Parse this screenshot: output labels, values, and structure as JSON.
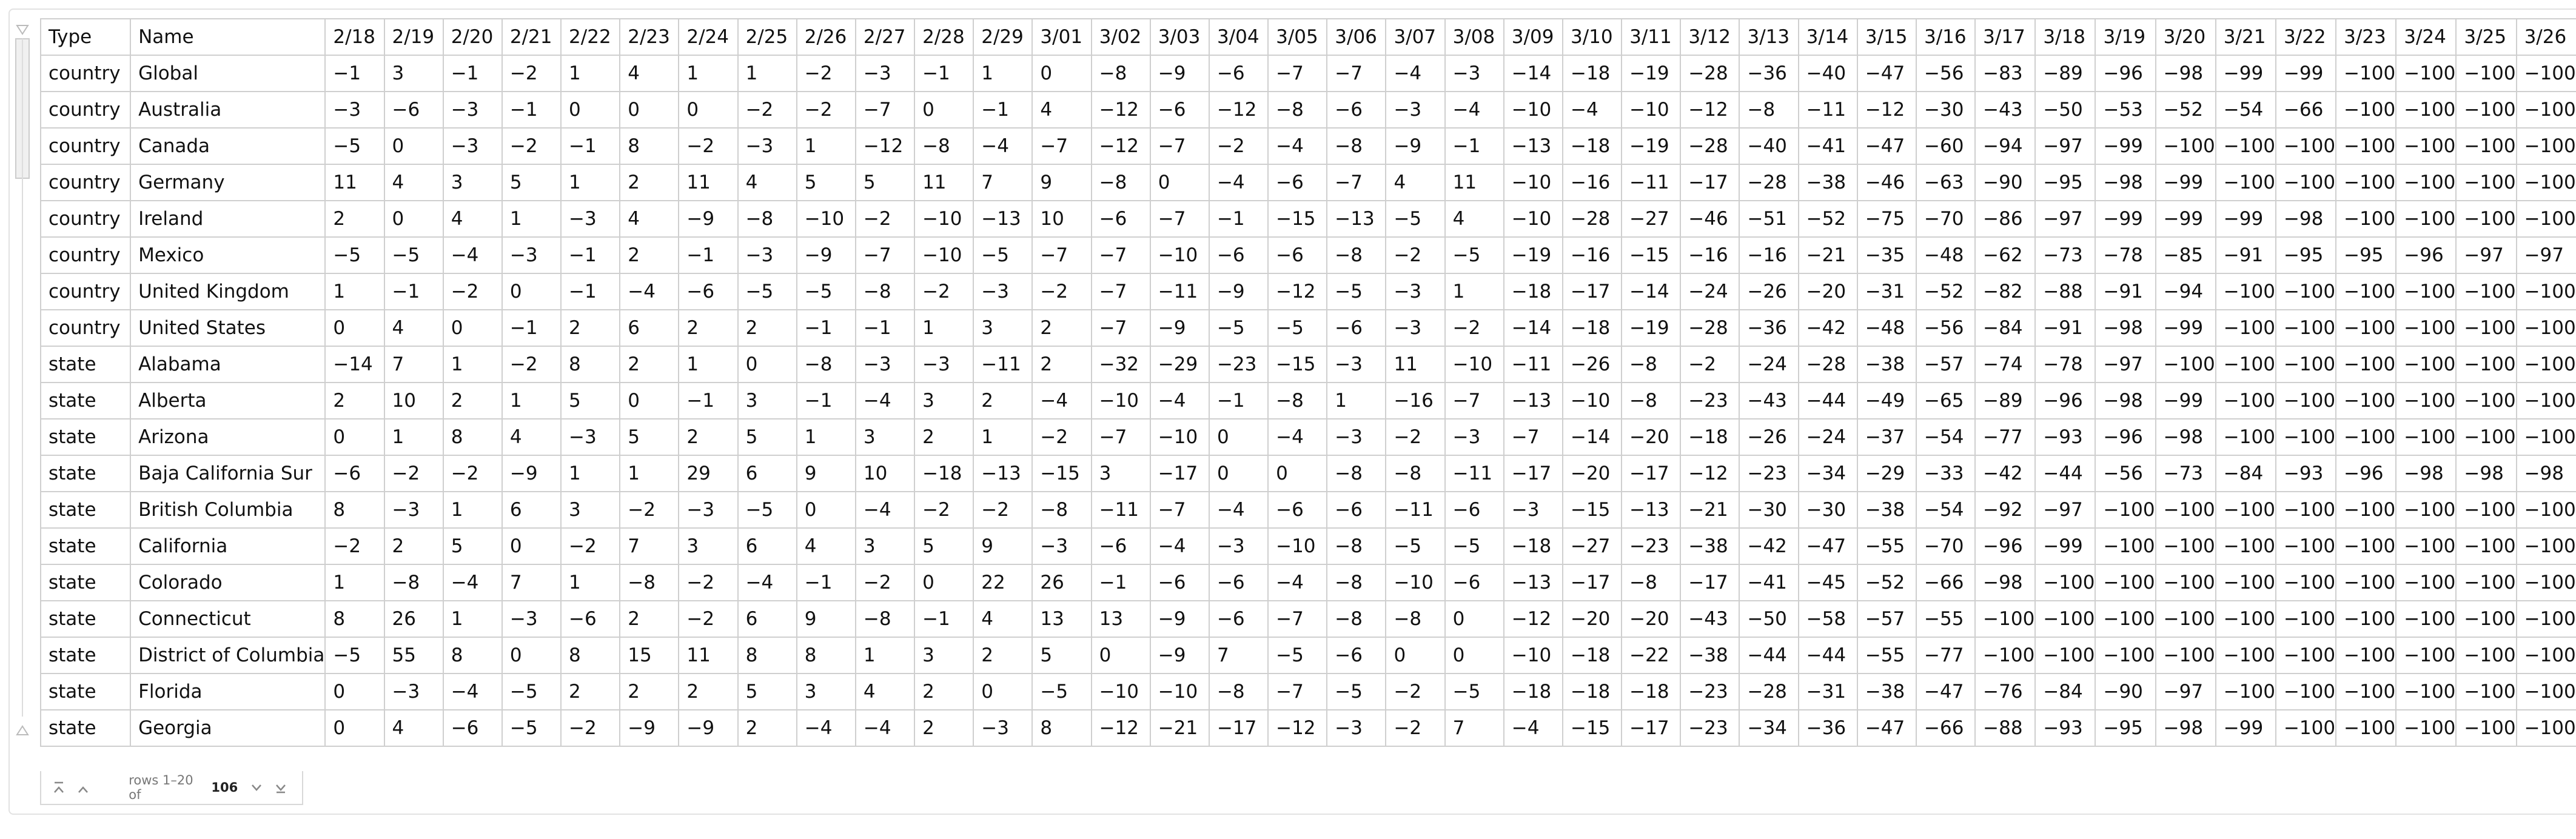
{
  "table": {
    "header": [
      "Type",
      "Name",
      "2/18",
      "2/19",
      "2/20",
      "2/21",
      "2/22",
      "2/23",
      "2/24",
      "2/25",
      "2/26",
      "2/27",
      "2/28",
      "2/29",
      "3/01",
      "3/02",
      "3/03",
      "3/04",
      "3/05",
      "3/06",
      "3/07",
      "3/08",
      "3/09",
      "3/10",
      "3/11",
      "3/12",
      "3/13",
      "3/14",
      "3/15",
      "3/16",
      "3/17",
      "3/18",
      "3/19",
      "3/20",
      "3/21",
      "3/22",
      "3/23",
      "3/24",
      "3/25",
      "3/26"
    ],
    "rows": [
      [
        "country",
        "Global",
        "−1",
        "3",
        "−1",
        "−2",
        "1",
        "4",
        "1",
        "1",
        "−2",
        "−3",
        "−1",
        "1",
        "0",
        "−8",
        "−9",
        "−6",
        "−7",
        "−7",
        "−4",
        "−3",
        "−14",
        "−18",
        "−19",
        "−28",
        "−36",
        "−40",
        "−47",
        "−56",
        "−83",
        "−89",
        "−96",
        "−98",
        "−99",
        "−99",
        "−100",
        "−100",
        "−100",
        "−100"
      ],
      [
        "country",
        "Australia",
        "−3",
        "−6",
        "−3",
        "−1",
        "0",
        "0",
        "0",
        "−2",
        "−2",
        "−7",
        "0",
        "−1",
        "4",
        "−12",
        "−6",
        "−12",
        "−8",
        "−6",
        "−3",
        "−4",
        "−10",
        "−4",
        "−10",
        "−12",
        "−8",
        "−11",
        "−12",
        "−30",
        "−43",
        "−50",
        "−53",
        "−52",
        "−54",
        "−66",
        "−100",
        "−100",
        "−100",
        "−100"
      ],
      [
        "country",
        "Canada",
        "−5",
        "0",
        "−3",
        "−2",
        "−1",
        "8",
        "−2",
        "−3",
        "1",
        "−12",
        "−8",
        "−4",
        "−7",
        "−12",
        "−7",
        "−2",
        "−4",
        "−8",
        "−9",
        "−1",
        "−13",
        "−18",
        "−19",
        "−28",
        "−40",
        "−41",
        "−47",
        "−60",
        "−94",
        "−97",
        "−99",
        "−100",
        "−100",
        "−100",
        "−100",
        "−100",
        "−100",
        "−100"
      ],
      [
        "country",
        "Germany",
        "11",
        "4",
        "3",
        "5",
        "1",
        "2",
        "11",
        "4",
        "5",
        "5",
        "11",
        "7",
        "9",
        "−8",
        "0",
        "−4",
        "−6",
        "−7",
        "4",
        "11",
        "−10",
        "−16",
        "−11",
        "−17",
        "−28",
        "−38",
        "−46",
        "−63",
        "−90",
        "−95",
        "−98",
        "−99",
        "−100",
        "−100",
        "−100",
        "−100",
        "−100",
        "−100"
      ],
      [
        "country",
        "Ireland",
        "2",
        "0",
        "4",
        "1",
        "−3",
        "4",
        "−9",
        "−8",
        "−10",
        "−2",
        "−10",
        "−13",
        "10",
        "−6",
        "−7",
        "−1",
        "−15",
        "−13",
        "−5",
        "4",
        "−10",
        "−28",
        "−27",
        "−46",
        "−51",
        "−52",
        "−75",
        "−70",
        "−86",
        "−97",
        "−99",
        "−99",
        "−99",
        "−98",
        "−100",
        "−100",
        "−100",
        "−100"
      ],
      [
        "country",
        "Mexico",
        "−5",
        "−5",
        "−4",
        "−3",
        "−1",
        "2",
        "−1",
        "−3",
        "−9",
        "−7",
        "−10",
        "−5",
        "−7",
        "−7",
        "−10",
        "−6",
        "−6",
        "−8",
        "−2",
        "−5",
        "−19",
        "−16",
        "−15",
        "−16",
        "−16",
        "−21",
        "−35",
        "−48",
        "−62",
        "−73",
        "−78",
        "−85",
        "−91",
        "−95",
        "−95",
        "−96",
        "−97",
        "−97"
      ],
      [
        "country",
        "United Kingdom",
        "1",
        "−1",
        "−2",
        "0",
        "−1",
        "−4",
        "−6",
        "−5",
        "−5",
        "−8",
        "−2",
        "−3",
        "−2",
        "−7",
        "−11",
        "−9",
        "−12",
        "−5",
        "−3",
        "1",
        "−18",
        "−17",
        "−14",
        "−24",
        "−26",
        "−20",
        "−31",
        "−52",
        "−82",
        "−88",
        "−91",
        "−94",
        "−100",
        "−100",
        "−100",
        "−100",
        "−100",
        "−100"
      ],
      [
        "country",
        "United States",
        "0",
        "4",
        "0",
        "−1",
        "2",
        "6",
        "2",
        "2",
        "−1",
        "−1",
        "1",
        "3",
        "2",
        "−7",
        "−9",
        "−5",
        "−5",
        "−6",
        "−3",
        "−2",
        "−14",
        "−18",
        "−19",
        "−28",
        "−36",
        "−42",
        "−48",
        "−56",
        "−84",
        "−91",
        "−98",
        "−99",
        "−100",
        "−100",
        "−100",
        "−100",
        "−100",
        "−100"
      ],
      [
        "state",
        "Alabama",
        "−14",
        "7",
        "1",
        "−2",
        "8",
        "2",
        "1",
        "0",
        "−8",
        "−3",
        "−3",
        "−11",
        "2",
        "−32",
        "−29",
        "−23",
        "−15",
        "−3",
        "11",
        "−10",
        "−11",
        "−26",
        "−8",
        "−2",
        "−24",
        "−28",
        "−38",
        "−57",
        "−74",
        "−78",
        "−97",
        "−100",
        "−100",
        "−100",
        "−100",
        "−100",
        "−100",
        "−100"
      ],
      [
        "state",
        "Alberta",
        "2",
        "10",
        "2",
        "1",
        "5",
        "0",
        "−1",
        "3",
        "−1",
        "−4",
        "3",
        "2",
        "−4",
        "−10",
        "−4",
        "−1",
        "−8",
        "1",
        "−16",
        "−7",
        "−13",
        "−10",
        "−8",
        "−23",
        "−43",
        "−44",
        "−49",
        "−65",
        "−89",
        "−96",
        "−98",
        "−99",
        "−100",
        "−100",
        "−100",
        "−100",
        "−100",
        "−100"
      ],
      [
        "state",
        "Arizona",
        "0",
        "1",
        "8",
        "4",
        "−3",
        "5",
        "2",
        "5",
        "1",
        "3",
        "2",
        "1",
        "−2",
        "−7",
        "−10",
        "0",
        "−4",
        "−3",
        "−2",
        "−3",
        "−7",
        "−14",
        "−20",
        "−18",
        "−26",
        "−24",
        "−37",
        "−54",
        "−77",
        "−93",
        "−96",
        "−98",
        "−100",
        "−100",
        "−100",
        "−100",
        "−100",
        "−100"
      ],
      [
        "state",
        "Baja California Sur",
        "−6",
        "−2",
        "−2",
        "−9",
        "1",
        "1",
        "29",
        "6",
        "9",
        "10",
        "−18",
        "−13",
        "−15",
        "3",
        "−17",
        "0",
        "0",
        "−8",
        "−8",
        "−11",
        "−17",
        "−20",
        "−17",
        "−12",
        "−23",
        "−34",
        "−29",
        "−33",
        "−42",
        "−44",
        "−56",
        "−73",
        "−84",
        "−93",
        "−96",
        "−98",
        "−98",
        "−98"
      ],
      [
        "state",
        "British Columbia",
        "8",
        "−3",
        "1",
        "6",
        "3",
        "−2",
        "−3",
        "−5",
        "0",
        "−4",
        "−2",
        "−2",
        "−8",
        "−11",
        "−7",
        "−4",
        "−6",
        "−6",
        "−11",
        "−6",
        "−3",
        "−15",
        "−13",
        "−21",
        "−30",
        "−30",
        "−38",
        "−54",
        "−92",
        "−97",
        "−100",
        "−100",
        "−100",
        "−100",
        "−100",
        "−100",
        "−100",
        "−100"
      ],
      [
        "state",
        "California",
        "−2",
        "2",
        "5",
        "0",
        "−2",
        "7",
        "3",
        "6",
        "4",
        "3",
        "5",
        "9",
        "−3",
        "−6",
        "−4",
        "−3",
        "−10",
        "−8",
        "−5",
        "−5",
        "−18",
        "−27",
        "−23",
        "−38",
        "−42",
        "−47",
        "−55",
        "−70",
        "−96",
        "−99",
        "−100",
        "−100",
        "−100",
        "−100",
        "−100",
        "−100",
        "−100",
        "−100"
      ],
      [
        "state",
        "Colorado",
        "1",
        "−8",
        "−4",
        "7",
        "1",
        "−8",
        "−2",
        "−4",
        "−1",
        "−2",
        "0",
        "22",
        "26",
        "−1",
        "−6",
        "−6",
        "−4",
        "−8",
        "−10",
        "−6",
        "−13",
        "−17",
        "−8",
        "−17",
        "−41",
        "−45",
        "−52",
        "−66",
        "−98",
        "−100",
        "−100",
        "−100",
        "−100",
        "−100",
        "−100",
        "−100",
        "−100",
        "−100"
      ],
      [
        "state",
        "Connecticut",
        "8",
        "26",
        "1",
        "−3",
        "−6",
        "2",
        "−2",
        "6",
        "9",
        "−8",
        "−1",
        "4",
        "13",
        "13",
        "−9",
        "−6",
        "−7",
        "−8",
        "−8",
        "0",
        "−12",
        "−20",
        "−20",
        "−43",
        "−50",
        "−58",
        "−57",
        "−55",
        "−100",
        "−100",
        "−100",
        "−100",
        "−100",
        "−100",
        "−100",
        "−100",
        "−100",
        "−100"
      ],
      [
        "state",
        "District of Columbia",
        "−5",
        "55",
        "8",
        "0",
        "8",
        "15",
        "11",
        "8",
        "8",
        "1",
        "3",
        "2",
        "5",
        "0",
        "−9",
        "7",
        "−5",
        "−6",
        "0",
        "0",
        "−10",
        "−18",
        "−22",
        "−38",
        "−44",
        "−44",
        "−55",
        "−77",
        "−100",
        "−100",
        "−100",
        "−100",
        "−100",
        "−100",
        "−100",
        "−100",
        "−100",
        "−100"
      ],
      [
        "state",
        "Florida",
        "0",
        "−3",
        "−4",
        "−5",
        "2",
        "2",
        "2",
        "5",
        "3",
        "4",
        "2",
        "0",
        "−5",
        "−10",
        "−10",
        "−8",
        "−7",
        "−5",
        "−2",
        "−5",
        "−18",
        "−18",
        "−18",
        "−23",
        "−28",
        "−31",
        "−38",
        "−47",
        "−76",
        "−84",
        "−90",
        "−97",
        "−100",
        "−100",
        "−100",
        "−100",
        "−100",
        "−100"
      ],
      [
        "state",
        "Georgia",
        "0",
        "4",
        "−6",
        "−5",
        "−2",
        "−9",
        "−9",
        "2",
        "−4",
        "−4",
        "2",
        "−3",
        "8",
        "−12",
        "−21",
        "−17",
        "−12",
        "−3",
        "−2",
        "7",
        "−4",
        "−15",
        "−17",
        "−23",
        "−34",
        "−36",
        "−47",
        "−66",
        "−88",
        "−93",
        "−95",
        "−98",
        "−99",
        "−100",
        "−100",
        "−100",
        "−100",
        "−100"
      ]
    ]
  },
  "footer": {
    "text": "rows 1–20 of",
    "total": 106
  }
}
